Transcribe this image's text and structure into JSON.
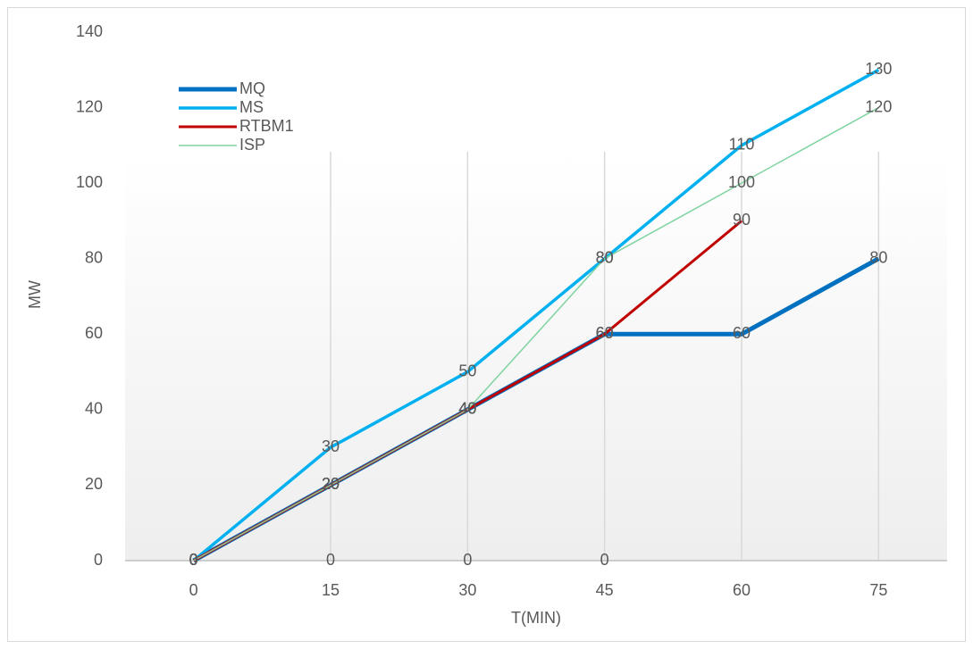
{
  "chart_data": {
    "type": "line",
    "x_label": "T(MIN)",
    "y_label": "MW",
    "categories": [
      "0",
      "15",
      "30",
      "45",
      "60",
      "75"
    ],
    "series": [
      {
        "name": "MQ",
        "color": "#0070c0",
        "values": [
          0,
          20,
          40,
          60,
          60,
          80
        ]
      },
      {
        "name": "MS",
        "color": "#00b0f0",
        "values": [
          0,
          30,
          50,
          80,
          110,
          130
        ]
      },
      {
        "name": "RTBM1",
        "color": "#c00000",
        "values": [
          0,
          20,
          40,
          60,
          90,
          null
        ]
      },
      {
        "name": "ISP",
        "color": "#7fd3a0",
        "values": [
          0,
          20,
          40,
          80,
          100,
          120
        ]
      },
      {
        "values": [
          0,
          0,
          0,
          0,
          null,
          null
        ]
      }
    ],
    "ylim": [
      0,
      140
    ],
    "yticks": [
      0,
      20,
      40,
      60,
      80,
      100,
      120,
      140
    ],
    "grid": "vertical",
    "legend": "upper left"
  }
}
